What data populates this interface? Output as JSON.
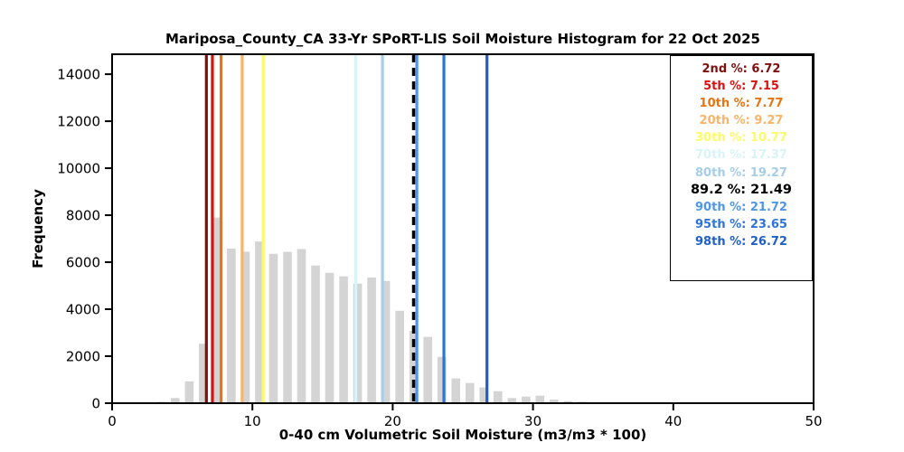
{
  "title": "Mariposa_County_CA 33-Yr SPoRT-LIS Soil Moisture Histogram for 22 Oct 2025",
  "chart_data": {
    "type": "bar",
    "title": "Mariposa_County_CA 33-Yr SPoRT-LIS Soil Moisture Histogram for 22 Oct 2025",
    "xlabel": "0-40 cm Volumetric Soil Moisture (m3/m3 * 100)",
    "ylabel": "Frequency",
    "xlim": [
      0,
      50
    ],
    "ylim": [
      0,
      14850
    ],
    "xticks": [
      0,
      10,
      20,
      30,
      40,
      50
    ],
    "yticks": [
      0,
      2000,
      4000,
      6000,
      8000,
      10000,
      12000,
      14000
    ],
    "grid": false,
    "legend_position": "upper right",
    "bar_color": "#d4d4d4",
    "bin_width_units": 0.62,
    "bars": [
      {
        "center": 3.5,
        "freq": 60
      },
      {
        "center": 4.5,
        "freq": 220
      },
      {
        "center": 5.5,
        "freq": 930
      },
      {
        "center": 6.5,
        "freq": 2530
      },
      {
        "center": 7.5,
        "freq": 7900
      },
      {
        "center": 8.5,
        "freq": 6580
      },
      {
        "center": 9.5,
        "freq": 6450
      },
      {
        "center": 10.5,
        "freq": 6880
      },
      {
        "center": 11.5,
        "freq": 6360
      },
      {
        "center": 12.5,
        "freq": 6440
      },
      {
        "center": 13.5,
        "freq": 6560
      },
      {
        "center": 14.5,
        "freq": 5860
      },
      {
        "center": 15.5,
        "freq": 5550
      },
      {
        "center": 16.5,
        "freq": 5400
      },
      {
        "center": 17.5,
        "freq": 5090
      },
      {
        "center": 18.5,
        "freq": 5350
      },
      {
        "center": 19.5,
        "freq": 5200
      },
      {
        "center": 20.5,
        "freq": 3930
      },
      {
        "center": 21.5,
        "freq": 3080
      },
      {
        "center": 22.5,
        "freq": 2820
      },
      {
        "center": 23.5,
        "freq": 1970
      },
      {
        "center": 24.5,
        "freq": 1050
      },
      {
        "center": 25.5,
        "freq": 860
      },
      {
        "center": 26.5,
        "freq": 670
      },
      {
        "center": 27.5,
        "freq": 510
      },
      {
        "center": 28.5,
        "freq": 220
      },
      {
        "center": 29.5,
        "freq": 280
      },
      {
        "center": 30.5,
        "freq": 320
      },
      {
        "center": 31.5,
        "freq": 155
      },
      {
        "center": 32.5,
        "freq": 90
      },
      {
        "center": 33.5,
        "freq": 65
      },
      {
        "center": 34.5,
        "freq": 40
      }
    ],
    "percentiles": [
      {
        "label": "2nd %",
        "value": 6.72,
        "color": "#7f0f0f",
        "dashed": false,
        "emphasis": false
      },
      {
        "label": "5th %",
        "value": 7.15,
        "color": "#d91111",
        "dashed": false,
        "emphasis": false
      },
      {
        "label": "10th %",
        "value": 7.77,
        "color": "#e87511",
        "dashed": false,
        "emphasis": false
      },
      {
        "label": "20th %",
        "value": 9.27,
        "color": "#f9b469",
        "dashed": false,
        "emphasis": false
      },
      {
        "label": "30th %",
        "value": 10.77,
        "color": "#fbfb69",
        "dashed": false,
        "emphasis": false
      },
      {
        "label": "70th %",
        "value": 17.37,
        "color": "#d9f4f8",
        "dashed": false,
        "emphasis": false
      },
      {
        "label": "80th %",
        "value": 19.27,
        "color": "#a6cee9",
        "dashed": false,
        "emphasis": false
      },
      {
        "label": "89.2 %",
        "value": 21.49,
        "color": "#000000",
        "dashed": true,
        "emphasis": true
      },
      {
        "label": "90th %",
        "value": 21.72,
        "color": "#4d96e8",
        "dashed": false,
        "emphasis": false
      },
      {
        "label": "95th %",
        "value": 23.65,
        "color": "#2d74d9",
        "dashed": false,
        "emphasis": false
      },
      {
        "label": "98th %",
        "value": 26.72,
        "color": "#1e5fc9",
        "dashed": false,
        "emphasis": false
      }
    ]
  }
}
